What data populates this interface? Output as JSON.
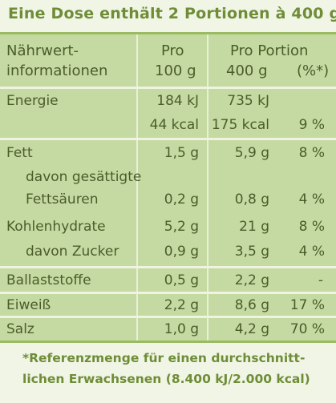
{
  "header": {
    "title": "Eine Dose enthält 2 Portionen à 400 g"
  },
  "table": {
    "col_headers": {
      "label_line1": "Nährwert-",
      "label_line2": "informationen",
      "per100_line1": "Pro",
      "per100_line2": "100 g",
      "portion_line1": "Pro Portion",
      "portion_line2": "400 g",
      "pct_line2": "(%*)"
    },
    "rows": {
      "energy_label": "Energie",
      "energy_kj_100": "184 kJ",
      "energy_kj_portion": "735 kJ",
      "energy_kcal_100": "44 kcal",
      "energy_kcal_portion": "175 kcal",
      "energy_pct": "9 %",
      "fat_label": "Fett",
      "fat_100": "1,5 g",
      "fat_portion": "5,9 g",
      "fat_pct": "8 %",
      "satfat_label_1": "davon gesättigte",
      "satfat_label_2": "Fettsäuren",
      "satfat_100": "0,2 g",
      "satfat_portion": "0,8 g",
      "satfat_pct": "4 %",
      "carb_label": "Kohlenhydrate",
      "carb_100": "5,2 g",
      "carb_portion": "21 g",
      "carb_pct": "8 %",
      "sugar_label": "davon Zucker",
      "sugar_100": "0,9 g",
      "sugar_portion": "3,5 g",
      "sugar_pct": "4 %",
      "fibre_label": "Ballaststoffe",
      "fibre_100": "0,5 g",
      "fibre_portion": "2,2 g",
      "fibre_pct": "-",
      "protein_label": "Eiweiß",
      "protein_100": "2,2 g",
      "protein_portion": "8,6 g",
      "protein_pct": "17 %",
      "salt_label": "Salz",
      "salt_100": "1,0 g",
      "salt_portion": "4,2 g",
      "salt_pct": "70 %"
    }
  },
  "footer": {
    "line1": "*Referenzmenge für einen durchschnitt-",
    "line2": "lichen Erwachsenen (8.400 kJ/2.000 kcal)"
  }
}
